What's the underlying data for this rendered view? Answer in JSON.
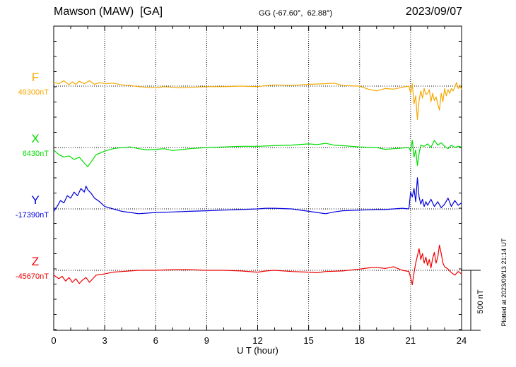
{
  "header": {
    "station": "Mawson (MAW)  [GA]",
    "coords": "GG (-67.60°,  62.88°)",
    "date": "2023/09/07"
  },
  "footer": {
    "plotted": "Plotted at 2023/09/13 21:14 UT"
  },
  "chart_data": {
    "type": "line",
    "xlabel": "U T (hour)",
    "xlim": [
      0,
      24
    ],
    "xticks": [
      "0",
      "3",
      "6",
      "9",
      "12",
      "15",
      "18",
      "21",
      "24"
    ],
    "scale_bar": {
      "label": "500 nT",
      "value_nT": 500
    },
    "colors": {
      "F": "#f5a800",
      "X": "#00dd00",
      "Y": "#0000dd",
      "Z": "#ee0000"
    },
    "series": [
      {
        "name": "F",
        "baseline_label": "49300nT",
        "baseline_nT": 49300,
        "offsets": [
          [
            0,
            30
          ],
          [
            0.3,
            20
          ],
          [
            0.6,
            45
          ],
          [
            0.9,
            10
          ],
          [
            1.1,
            35
          ],
          [
            1.3,
            15
          ],
          [
            1.5,
            40
          ],
          [
            1.8,
            20
          ],
          [
            2.1,
            45
          ],
          [
            2.4,
            15
          ],
          [
            2.7,
            30
          ],
          [
            3,
            20
          ],
          [
            3.5,
            25
          ],
          [
            4,
            10
          ],
          [
            4.5,
            5
          ],
          [
            5,
            -5
          ],
          [
            5.5,
            -10
          ],
          [
            6,
            -15
          ],
          [
            6.5,
            -5
          ],
          [
            7,
            -10
          ],
          [
            7.5,
            -15
          ],
          [
            8,
            -10
          ],
          [
            9,
            -5
          ],
          [
            10,
            -5
          ],
          [
            11,
            0
          ],
          [
            12,
            -5
          ],
          [
            12.5,
            5
          ],
          [
            13,
            10
          ],
          [
            14,
            5
          ],
          [
            15,
            15
          ],
          [
            16,
            20
          ],
          [
            16.5,
            25
          ],
          [
            17,
            5
          ],
          [
            18,
            0
          ],
          [
            18.5,
            -25
          ],
          [
            19,
            -40
          ],
          [
            19.5,
            -20
          ],
          [
            20,
            -25
          ],
          [
            20.5,
            -10
          ],
          [
            20.9,
            0
          ],
          [
            21.0,
            -60
          ],
          [
            21.1,
            20
          ],
          [
            21.2,
            -150
          ],
          [
            21.3,
            -80
          ],
          [
            21.4,
            -280
          ],
          [
            21.5,
            -120
          ],
          [
            21.6,
            -40
          ],
          [
            21.7,
            -100
          ],
          [
            21.8,
            -20
          ],
          [
            21.9,
            -70
          ],
          [
            22.0,
            -60
          ],
          [
            22.1,
            -30
          ],
          [
            22.2,
            -130
          ],
          [
            22.3,
            -60
          ],
          [
            22.4,
            -120
          ],
          [
            22.5,
            -90
          ],
          [
            22.6,
            -150
          ],
          [
            22.7,
            -200
          ],
          [
            22.8,
            -60
          ],
          [
            22.9,
            -130
          ],
          [
            23.0,
            -20
          ],
          [
            23.1,
            -80
          ],
          [
            23.2,
            -30
          ],
          [
            23.3,
            -60
          ],
          [
            23.4,
            -20
          ],
          [
            23.5,
            -40
          ],
          [
            23.6,
            -10
          ],
          [
            23.7,
            30
          ],
          [
            23.8,
            -20
          ],
          [
            23.9,
            10
          ],
          [
            24,
            -30
          ]
        ]
      },
      {
        "name": "X",
        "baseline_label": "6430nT",
        "baseline_nT": 6430,
        "offsets": [
          [
            0,
            -20
          ],
          [
            0.3,
            -60
          ],
          [
            0.6,
            -80
          ],
          [
            0.9,
            -70
          ],
          [
            1.2,
            -100
          ],
          [
            1.5,
            -80
          ],
          [
            1.8,
            -130
          ],
          [
            2.0,
            -160
          ],
          [
            2.2,
            -120
          ],
          [
            2.5,
            -60
          ],
          [
            3,
            -30
          ],
          [
            3.5,
            -10
          ],
          [
            4,
            0
          ],
          [
            4.5,
            5
          ],
          [
            5,
            -10
          ],
          [
            5.5,
            -20
          ],
          [
            6,
            -15
          ],
          [
            6.5,
            -10
          ],
          [
            7,
            -25
          ],
          [
            8,
            -10
          ],
          [
            9,
            0
          ],
          [
            10,
            5
          ],
          [
            11,
            10
          ],
          [
            12,
            10
          ],
          [
            13,
            15
          ],
          [
            14,
            20
          ],
          [
            15,
            30
          ],
          [
            15.5,
            25
          ],
          [
            16,
            35
          ],
          [
            16.5,
            20
          ],
          [
            17,
            15
          ],
          [
            18,
            5
          ],
          [
            19,
            0
          ],
          [
            19.5,
            -15
          ],
          [
            20,
            -10
          ],
          [
            20.5,
            -5
          ],
          [
            20.9,
            0
          ],
          [
            21.0,
            -30
          ],
          [
            21.1,
            60
          ],
          [
            21.2,
            -80
          ],
          [
            21.3,
            -20
          ],
          [
            21.4,
            -150
          ],
          [
            21.5,
            -50
          ],
          [
            21.6,
            20
          ],
          [
            21.8,
            10
          ],
          [
            22,
            30
          ],
          [
            22.2,
            0
          ],
          [
            22.4,
            60
          ],
          [
            22.6,
            20
          ],
          [
            22.8,
            40
          ],
          [
            23,
            10
          ],
          [
            23.2,
            -10
          ],
          [
            23.4,
            20
          ],
          [
            23.6,
            0
          ],
          [
            23.8,
            10
          ],
          [
            24,
            5
          ]
        ]
      },
      {
        "name": "Y",
        "baseline_label": "-17390nT",
        "baseline_nT": -17390,
        "offsets": [
          [
            0,
            -20
          ],
          [
            0.2,
            20
          ],
          [
            0.4,
            70
          ],
          [
            0.6,
            50
          ],
          [
            0.8,
            110
          ],
          [
            1.0,
            90
          ],
          [
            1.2,
            140
          ],
          [
            1.4,
            110
          ],
          [
            1.6,
            170
          ],
          [
            1.8,
            140
          ],
          [
            1.9,
            190
          ],
          [
            2.0,
            160
          ],
          [
            2.2,
            130
          ],
          [
            2.4,
            90
          ],
          [
            2.7,
            60
          ],
          [
            3,
            20
          ],
          [
            3.5,
            0
          ],
          [
            4,
            -20
          ],
          [
            4.5,
            -30
          ],
          [
            5,
            -40
          ],
          [
            6,
            -30
          ],
          [
            7,
            -25
          ],
          [
            8,
            -20
          ],
          [
            9,
            -15
          ],
          [
            10,
            -10
          ],
          [
            11,
            -5
          ],
          [
            12,
            0
          ],
          [
            12.5,
            5
          ],
          [
            13,
            5
          ],
          [
            14,
            0
          ],
          [
            15,
            -20
          ],
          [
            15.5,
            -30
          ],
          [
            16,
            -40
          ],
          [
            16.5,
            -25
          ],
          [
            17,
            -15
          ],
          [
            18,
            -10
          ],
          [
            19,
            -5
          ],
          [
            19.5,
            -5
          ],
          [
            20,
            0
          ],
          [
            20.5,
            5
          ],
          [
            20.9,
            0
          ],
          [
            21.0,
            140
          ],
          [
            21.1,
            100
          ],
          [
            21.2,
            170
          ],
          [
            21.3,
            60
          ],
          [
            21.4,
            260
          ],
          [
            21.5,
            100
          ],
          [
            21.6,
            40
          ],
          [
            21.7,
            80
          ],
          [
            21.8,
            20
          ],
          [
            21.9,
            60
          ],
          [
            22.0,
            30
          ],
          [
            22.2,
            80
          ],
          [
            22.4,
            20
          ],
          [
            22.6,
            60
          ],
          [
            22.8,
            10
          ],
          [
            23.0,
            40
          ],
          [
            23.2,
            90
          ],
          [
            23.4,
            20
          ],
          [
            23.6,
            70
          ],
          [
            23.8,
            30
          ],
          [
            24,
            50
          ]
        ]
      },
      {
        "name": "Z",
        "baseline_label": "-45670nT",
        "baseline_nT": -45670,
        "offsets": [
          [
            0,
            -40
          ],
          [
            0.3,
            -70
          ],
          [
            0.5,
            -50
          ],
          [
            0.7,
            -90
          ],
          [
            0.9,
            -60
          ],
          [
            1.1,
            -100
          ],
          [
            1.3,
            -70
          ],
          [
            1.5,
            -110
          ],
          [
            1.7,
            -80
          ],
          [
            1.9,
            -60
          ],
          [
            2.1,
            -100
          ],
          [
            2.3,
            -70
          ],
          [
            2.5,
            -40
          ],
          [
            3,
            -30
          ],
          [
            3.5,
            -15
          ],
          [
            4,
            -10
          ],
          [
            4.5,
            -5
          ],
          [
            5,
            0
          ],
          [
            6,
            0
          ],
          [
            7,
            5
          ],
          [
            8,
            5
          ],
          [
            9,
            0
          ],
          [
            10,
            0
          ],
          [
            11,
            -5
          ],
          [
            12,
            -15
          ],
          [
            12.5,
            -5
          ],
          [
            13,
            0
          ],
          [
            14,
            -10
          ],
          [
            15,
            -15
          ],
          [
            15.5,
            -20
          ],
          [
            16,
            -10
          ],
          [
            17,
            -5
          ],
          [
            18,
            10
          ],
          [
            18.5,
            20
          ],
          [
            19,
            25
          ],
          [
            19.5,
            15
          ],
          [
            20,
            30
          ],
          [
            20.5,
            0
          ],
          [
            20.9,
            -10
          ],
          [
            21.0,
            -60
          ],
          [
            21.1,
            -120
          ],
          [
            21.2,
            -20
          ],
          [
            21.3,
            60
          ],
          [
            21.4,
            120
          ],
          [
            21.5,
            180
          ],
          [
            21.6,
            90
          ],
          [
            21.7,
            140
          ],
          [
            21.8,
            60
          ],
          [
            21.9,
            110
          ],
          [
            22.0,
            40
          ],
          [
            22.1,
            90
          ],
          [
            22.2,
            20
          ],
          [
            22.3,
            100
          ],
          [
            22.4,
            150
          ],
          [
            22.5,
            60
          ],
          [
            22.6,
            110
          ],
          [
            22.7,
            210
          ],
          [
            22.8,
            140
          ],
          [
            22.9,
            60
          ],
          [
            23.0,
            30
          ],
          [
            23.2,
            10
          ],
          [
            23.4,
            -20
          ],
          [
            23.6,
            -40
          ],
          [
            23.8,
            -10
          ],
          [
            24,
            -30
          ]
        ]
      }
    ]
  }
}
